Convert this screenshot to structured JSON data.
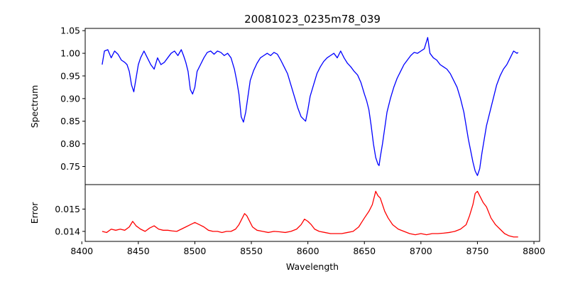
{
  "chart_data": [
    {
      "type": "line",
      "panel": "top",
      "title": "20081023_0235m78_039",
      "xlabel": "",
      "ylabel": "Spectrum",
      "xlim": [
        8403,
        8805
      ],
      "ylim": [
        0.71,
        1.055
      ],
      "yticks": [
        0.75,
        0.8,
        0.85,
        0.9,
        0.95,
        1.0,
        1.05
      ],
      "ytick_labels": [
        "0.75",
        "0.80",
        "0.85",
        "0.90",
        "0.95",
        "1.00",
        "1.05"
      ],
      "color": "#0000ff",
      "series": [
        {
          "name": "Spectrum",
          "x": [
            8418,
            8420,
            8423,
            8426,
            8429,
            8432,
            8435,
            8438,
            8440,
            8442,
            8444,
            8446,
            8448,
            8450,
            8452,
            8455,
            8458,
            8461,
            8464,
            8467,
            8470,
            8473,
            8476,
            8479,
            8482,
            8485,
            8488,
            8490,
            8492,
            8494,
            8496,
            8498,
            8500,
            8502,
            8505,
            8508,
            8511,
            8514,
            8517,
            8520,
            8523,
            8526,
            8529,
            8532,
            8535,
            8537,
            8539,
            8541,
            8543,
            8545,
            8547,
            8549,
            8552,
            8555,
            8558,
            8561,
            8564,
            8567,
            8570,
            8573,
            8576,
            8579,
            8582,
            8585,
            8588,
            8591,
            8594,
            8596,
            8598,
            8600,
            8602,
            8605,
            8608,
            8611,
            8614,
            8617,
            8620,
            8623,
            8626,
            8629,
            8632,
            8635,
            8638,
            8641,
            8644,
            8647,
            8650,
            8652,
            8654,
            8656,
            8658,
            8660,
            8662,
            8663,
            8664,
            8666,
            8668,
            8670,
            8673,
            8676,
            8679,
            8682,
            8685,
            8688,
            8691,
            8694,
            8697,
            8700,
            8703,
            8706,
            8708,
            8711,
            8714,
            8717,
            8720,
            8723,
            8726,
            8729,
            8732,
            8735,
            8738,
            8740,
            8742,
            8744,
            8746,
            8748,
            8750,
            8752,
            8754,
            8756,
            8758,
            8761,
            8764,
            8767,
            8770,
            8773,
            8776,
            8779,
            8782,
            8785,
            8786
          ],
          "values": [
            0.975,
            1.005,
            1.008,
            0.99,
            1.005,
            0.998,
            0.985,
            0.98,
            0.975,
            0.96,
            0.93,
            0.915,
            0.945,
            0.975,
            0.99,
            1.005,
            0.99,
            0.975,
            0.965,
            0.99,
            0.975,
            0.98,
            0.99,
            1.0,
            1.005,
            0.995,
            1.008,
            0.995,
            0.98,
            0.96,
            0.92,
            0.91,
            0.925,
            0.96,
            0.975,
            0.99,
            1.002,
            1.005,
            0.998,
            1.005,
            1.002,
            0.995,
            1.0,
            0.99,
            0.965,
            0.94,
            0.91,
            0.86,
            0.848,
            0.87,
            0.905,
            0.94,
            0.962,
            0.978,
            0.99,
            0.995,
            1.0,
            0.995,
            1.002,
            0.998,
            0.985,
            0.97,
            0.955,
            0.93,
            0.905,
            0.88,
            0.86,
            0.855,
            0.85,
            0.875,
            0.905,
            0.93,
            0.955,
            0.97,
            0.982,
            0.99,
            0.995,
            1.0,
            0.99,
            1.005,
            0.99,
            0.978,
            0.97,
            0.96,
            0.952,
            0.935,
            0.91,
            0.895,
            0.875,
            0.84,
            0.8,
            0.77,
            0.755,
            0.752,
            0.77,
            0.8,
            0.835,
            0.87,
            0.9,
            0.925,
            0.945,
            0.96,
            0.975,
            0.985,
            0.995,
            1.002,
            1.0,
            1.005,
            1.01,
            1.035,
            1.0,
            0.99,
            0.985,
            0.975,
            0.97,
            0.965,
            0.955,
            0.94,
            0.925,
            0.9,
            0.87,
            0.84,
            0.81,
            0.785,
            0.76,
            0.74,
            0.73,
            0.745,
            0.78,
            0.81,
            0.84,
            0.87,
            0.9,
            0.93,
            0.95,
            0.965,
            0.975,
            0.99,
            1.005,
            1.0,
            1.002
          ]
        }
      ]
    },
    {
      "type": "line",
      "panel": "bottom",
      "title": "",
      "xlabel": "Wavelength",
      "ylabel": "Error",
      "xlim": [
        8403,
        8805
      ],
      "ylim": [
        0.01355,
        0.0161
      ],
      "xticks": [
        8400,
        8450,
        8500,
        8550,
        8600,
        8650,
        8700,
        8750,
        8800
      ],
      "xtick_labels": [
        "8400",
        "8450",
        "8500",
        "8550",
        "8600",
        "8650",
        "8700",
        "8750",
        "8800"
      ],
      "yticks": [
        0.014,
        0.015
      ],
      "ytick_labels": [
        "0.014",
        "0.015"
      ],
      "color": "#ff0000",
      "series": [
        {
          "name": "Error",
          "x": [
            8418,
            8422,
            8426,
            8430,
            8434,
            8438,
            8442,
            8445,
            8448,
            8452,
            8456,
            8460,
            8464,
            8468,
            8472,
            8476,
            8480,
            8484,
            8488,
            8492,
            8496,
            8500,
            8504,
            8508,
            8512,
            8516,
            8520,
            8524,
            8528,
            8532,
            8536,
            8539,
            8542,
            8544,
            8546,
            8548,
            8551,
            8555,
            8560,
            8565,
            8570,
            8575,
            8580,
            8585,
            8590,
            8594,
            8597,
            8600,
            8603,
            8606,
            8610,
            8615,
            8620,
            8625,
            8630,
            8635,
            8640,
            8645,
            8650,
            8654,
            8657,
            8660,
            8662,
            8664,
            8666,
            8668,
            8671,
            8675,
            8680,
            8685,
            8690,
            8695,
            8700,
            8705,
            8710,
            8715,
            8720,
            8725,
            8730,
            8735,
            8740,
            8743,
            8746,
            8748,
            8750,
            8752,
            8755,
            8758,
            8762,
            8766,
            8770,
            8774,
            8778,
            8782,
            8786
          ],
          "values": [
            0.014,
            0.01395,
            0.0141,
            0.01405,
            0.0141,
            0.01405,
            0.0142,
            0.01445,
            0.01425,
            0.0141,
            0.014,
            0.01415,
            0.01425,
            0.0141,
            0.01405,
            0.01405,
            0.01402,
            0.014,
            0.0141,
            0.0142,
            0.0143,
            0.0144,
            0.0143,
            0.0142,
            0.01405,
            0.014,
            0.014,
            0.01395,
            0.014,
            0.014,
            0.0141,
            0.0143,
            0.0146,
            0.0148,
            0.0147,
            0.0145,
            0.0142,
            0.01405,
            0.014,
            0.01395,
            0.014,
            0.01398,
            0.01395,
            0.014,
            0.0141,
            0.0143,
            0.01455,
            0.01445,
            0.0143,
            0.0141,
            0.014,
            0.01395,
            0.0139,
            0.0139,
            0.0139,
            0.01395,
            0.014,
            0.0142,
            0.0146,
            0.0149,
            0.0152,
            0.0158,
            0.0156,
            0.0155,
            0.0152,
            0.0149,
            0.0146,
            0.0143,
            0.0141,
            0.014,
            0.0139,
            0.01385,
            0.0139,
            0.01385,
            0.0139,
            0.0139,
            0.01392,
            0.01395,
            0.014,
            0.0141,
            0.0143,
            0.0147,
            0.0152,
            0.0157,
            0.0158,
            0.0156,
            0.0153,
            0.0151,
            0.0146,
            0.0143,
            0.0141,
            0.0139,
            0.0138,
            0.01375,
            0.01375
          ]
        }
      ]
    }
  ]
}
